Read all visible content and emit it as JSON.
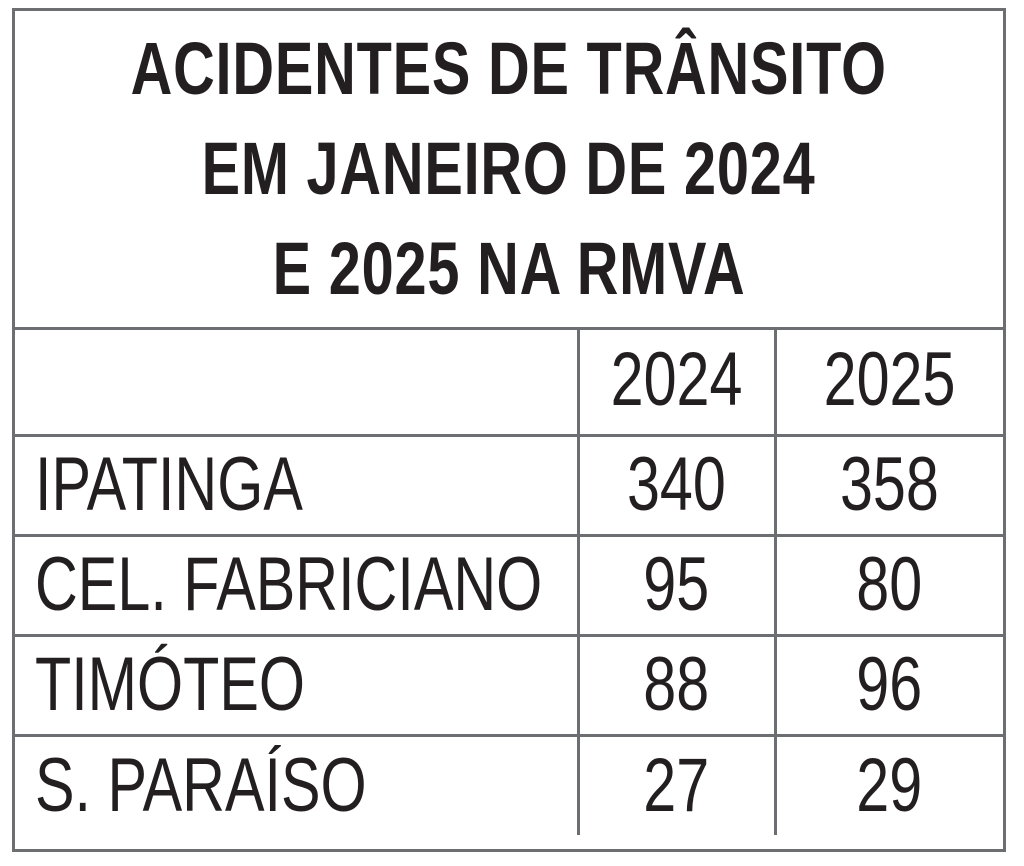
{
  "chart_data": {
    "type": "table",
    "title_lines": [
      "ACIDENTES DE TRÂNSITO",
      "EM JANEIRO DE 2024",
      "E 2025 NA RMVA"
    ],
    "columns": [
      "2024",
      "2025"
    ],
    "rows": [
      {
        "name": "IPATINGA",
        "values": [
          340,
          358
        ]
      },
      {
        "name": "CEL. FABRICIANO",
        "values": [
          95,
          80
        ]
      },
      {
        "name": "TIMÓTEO",
        "values": [
          88,
          96
        ]
      },
      {
        "name": "S. PARAÍSO",
        "values": [
          27,
          29
        ]
      }
    ]
  }
}
